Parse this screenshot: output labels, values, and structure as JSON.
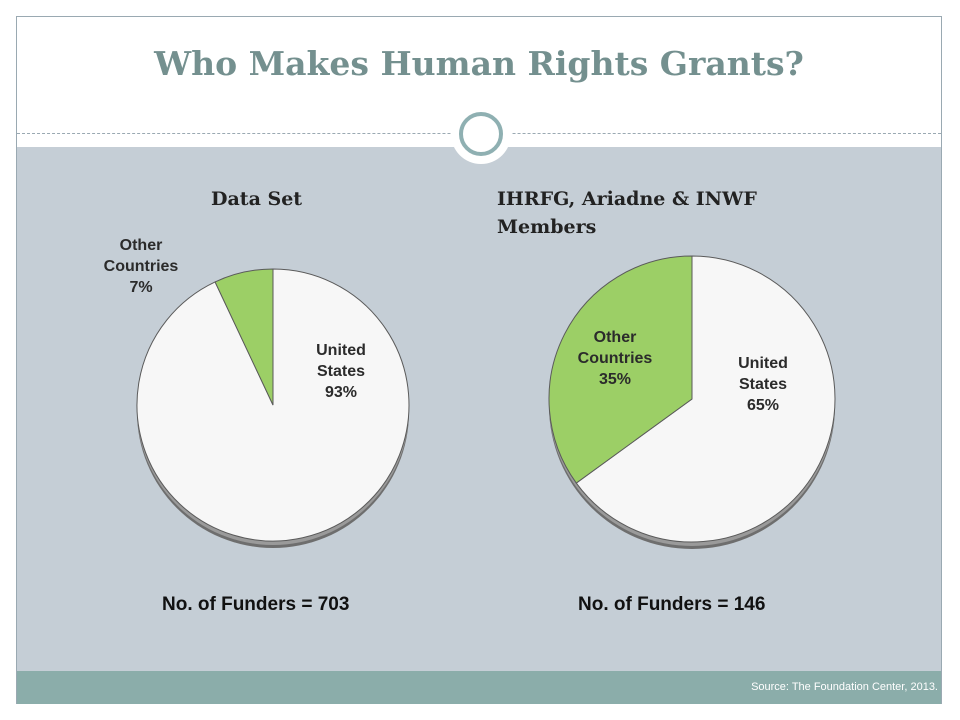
{
  "slide": {
    "title": "Who Makes Human Rights Grants?",
    "source": "Source: The Foundation Center, 2013.",
    "colors": {
      "title": "#74908f",
      "panel": "#c5ced6",
      "footer": "#8badaa",
      "green": "#9ccf66",
      "white_slice": "#f7f7f7"
    }
  },
  "chart_data": [
    {
      "type": "pie",
      "title": "Data Set",
      "footnote": "No. of Funders = 703",
      "slices": [
        {
          "label_line1": "United",
          "label_line2": "States",
          "percent_label": "93%",
          "value": 93,
          "color": "#f7f7f7"
        },
        {
          "label_line1": "Other",
          "label_line2": "Countries",
          "percent_label": "7%",
          "value": 7,
          "color": "#9ccf66"
        }
      ]
    },
    {
      "type": "pie",
      "title_line1": "IHRFG, Ariadne & INWF",
      "title_line2": "Members",
      "footnote": "No. of Funders = 146",
      "slices": [
        {
          "label_line1": "United",
          "label_line2": "States",
          "percent_label": "65%",
          "value": 65,
          "color": "#f7f7f7"
        },
        {
          "label_line1": "Other",
          "label_line2": "Countries",
          "percent_label": "35%",
          "value": 35,
          "color": "#9ccf66"
        }
      ]
    }
  ]
}
